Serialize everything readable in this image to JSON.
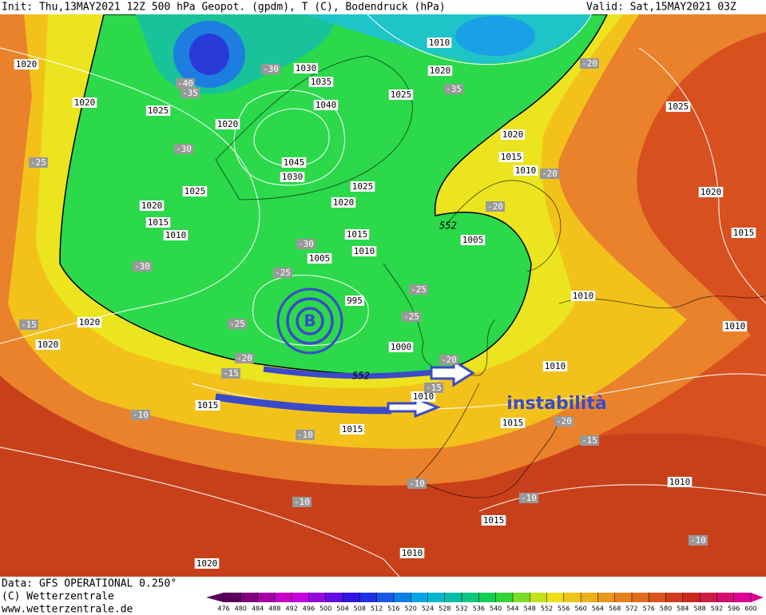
{
  "header": {
    "left": "Init: Thu,13MAY2021 12Z  500 hPa Geopot. (gpdm), T (C), Bodendruck (hPa)",
    "right": "Valid: Sat,15MAY2021 03Z"
  },
  "map": {
    "isobar_labels": [
      "1020",
      "1020",
      "1025",
      "1020",
      "1030",
      "1035",
      "1040",
      "1045",
      "1030",
      "1025",
      "1020",
      "1015",
      "1010",
      "1010",
      "1020",
      "1025",
      "1025",
      "1020",
      "1015",
      "1010",
      "1005",
      "995",
      "1000",
      "1005",
      "1020",
      "1015",
      "1010",
      "1025",
      "1020",
      "1015",
      "1010",
      "1010",
      "1010",
      "1020",
      "1020",
      "1015",
      "1015",
      "1015",
      "1010",
      "1010",
      "1015",
      "1010",
      "1020"
    ],
    "temperature_labels": [
      "-40",
      "-35",
      "-30",
      "-35",
      "-30",
      "-25",
      "-20",
      "-20",
      "-20",
      "-30",
      "-30",
      "-25",
      "-25",
      "-25",
      "-25",
      "-20",
      "-15",
      "-20",
      "-15",
      "-15",
      "-10",
      "-10",
      "-20",
      "-15",
      "-10",
      "-10",
      "-10",
      "-10"
    ],
    "height_labels": [
      "552",
      "552"
    ],
    "low_label": "B",
    "annotation": "instabilità"
  },
  "footer": {
    "source": "Data: GFS OPERATIONAL 0.250°",
    "copyright": "(C) Wetterzentrale",
    "url": "www.wetterzentrale.de"
  },
  "colorbar": {
    "ticks": [
      476,
      480,
      484,
      488,
      492,
      496,
      500,
      504,
      508,
      512,
      516,
      520,
      524,
      528,
      532,
      536,
      540,
      544,
      548,
      552,
      556,
      560,
      564,
      568,
      572,
      576,
      580,
      584,
      588,
      592,
      596,
      600
    ]
  }
}
